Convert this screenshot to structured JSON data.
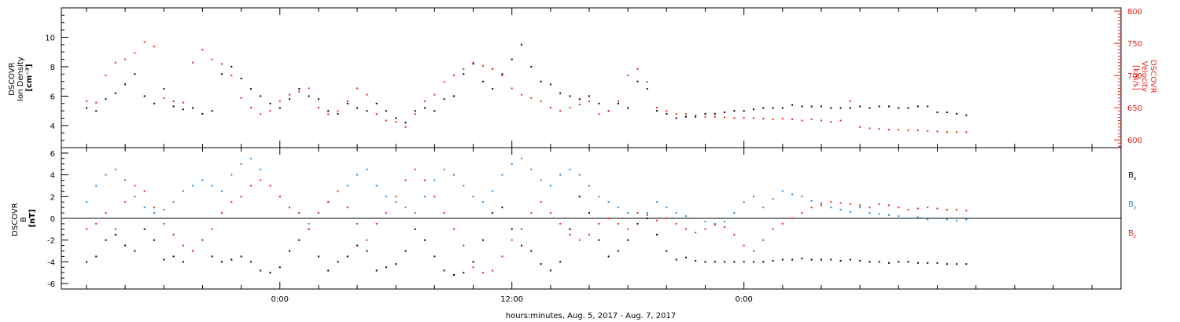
{
  "chart_data": [
    {
      "type": "scatter",
      "panel": "ion-density-velocity",
      "ylabel_lines": [
        "DSCOVR",
        "Ion Density",
        "[cm⁻³]"
      ],
      "ylim": [
        2.5,
        12
      ],
      "yticks": [
        4,
        6,
        8,
        10
      ],
      "right_axis": {
        "label_lines": [
          "DSCOVR",
          "Velocity",
          "[km/s]"
        ],
        "ylim": [
          588,
          805
        ],
        "ticks": [
          600,
          650,
          700,
          750,
          800
        ],
        "color": "#e8241c"
      },
      "series": [
        {
          "key": "density",
          "axis": "left",
          "color": "#000000",
          "x": [
            -10.0,
            -9.5,
            -9.0,
            -8.5,
            -8.0,
            -7.5,
            -7.0,
            -6.5,
            -6.0,
            -5.5,
            -5.0,
            -4.5,
            -4.0,
            -3.5,
            -3.0,
            -2.5,
            -2.0,
            -1.5,
            -1.0,
            -0.5,
            0.0,
            0.5,
            1.0,
            1.5,
            2.0,
            2.5,
            3.0,
            3.5,
            4.0,
            4.5,
            5.0,
            5.5,
            6.0,
            6.5,
            7.0,
            7.5,
            8.0,
            8.5,
            9.0,
            9.5,
            10.0,
            10.5,
            11.0,
            11.5,
            12.0,
            12.5,
            13.0,
            13.5,
            14.0,
            14.5,
            15.0,
            15.5,
            16.0,
            16.5,
            17.0,
            17.5,
            18.0,
            18.5,
            19.0,
            19.5,
            20.0,
            20.5,
            21.0,
            21.5,
            22.0,
            22.5,
            23.0,
            23.5,
            24.0,
            24.5,
            25.0,
            25.5,
            26.0,
            26.5,
            27.0,
            27.5,
            28.0,
            28.5,
            29.0,
            29.5,
            30.0,
            30.5,
            31.0,
            31.5,
            32.0,
            32.5,
            33.0,
            33.5,
            34.0,
            34.5,
            35.0,
            35.5
          ],
          "y": [
            5.2,
            5.0,
            5.8,
            6.2,
            6.8,
            7.5,
            6.0,
            5.5,
            6.5,
            5.3,
            5.1,
            5.2,
            4.8,
            5.0,
            7.5,
            8.0,
            7.2,
            6.5,
            6.0,
            5.5,
            5.2,
            5.8,
            6.5,
            6.0,
            5.8,
            5.0,
            4.8,
            5.5,
            5.2,
            5.0,
            5.5,
            5.0,
            4.5,
            4.2,
            5.0,
            5.2,
            5.0,
            5.8,
            6.0,
            7.5,
            8.2,
            7.0,
            6.5,
            7.5,
            8.5,
            9.5,
            8.0,
            7.0,
            6.8,
            6.2,
            6.0,
            5.8,
            6.0,
            5.5,
            5.0,
            5.5,
            5.2,
            7.0,
            6.5,
            5.0,
            4.8,
            4.5,
            4.6,
            4.6,
            4.8,
            4.8,
            4.9,
            5.0,
            5.0,
            5.1,
            5.2,
            5.2,
            5.2,
            5.4,
            5.3,
            5.3,
            5.3,
            5.2,
            5.2,
            5.2,
            5.3,
            5.2,
            5.3,
            5.3,
            5.2,
            5.2,
            5.3,
            5.3,
            4.9,
            4.9,
            4.8,
            4.7
          ]
        },
        {
          "key": "velocity",
          "axis": "right",
          "color": "#e8241c",
          "x": [
            -10.0,
            -9.5,
            -9.0,
            -8.5,
            -8.0,
            -7.5,
            -7.0,
            -6.5,
            -6.0,
            -5.5,
            -5.0,
            -4.5,
            -4.0,
            -3.5,
            -3.0,
            -2.5,
            -2.0,
            -1.5,
            -1.0,
            -0.5,
            0.0,
            0.5,
            1.0,
            1.5,
            2.0,
            2.5,
            3.0,
            3.5,
            4.0,
            4.5,
            5.0,
            5.5,
            6.0,
            6.5,
            7.0,
            7.5,
            8.0,
            8.5,
            9.0,
            9.5,
            10.0,
            10.5,
            11.0,
            11.5,
            12.0,
            12.5,
            13.0,
            13.5,
            14.0,
            14.5,
            15.0,
            15.5,
            16.0,
            16.5,
            17.0,
            17.5,
            18.0,
            18.5,
            19.0,
            19.5,
            20.0,
            20.5,
            21.0,
            21.5,
            22.0,
            22.5,
            23.0,
            23.5,
            24.0,
            24.5,
            25.0,
            25.5,
            26.0,
            26.5,
            27.0,
            27.5,
            28.0,
            28.5,
            29.0,
            29.5,
            30.0,
            30.5,
            31.0,
            31.5,
            32.0,
            32.5,
            33.0,
            33.5,
            34.0,
            34.5,
            35.0,
            35.5
          ],
          "y": [
            660,
            658,
            700,
            720,
            725,
            735,
            752,
            745,
            665,
            660,
            658,
            720,
            740,
            725,
            718,
            700,
            665,
            650,
            640,
            645,
            660,
            670,
            675,
            680,
            650,
            640,
            645,
            660,
            680,
            670,
            640,
            630,
            628,
            620,
            640,
            660,
            670,
            690,
            700,
            710,
            720,
            715,
            710,
            700,
            680,
            670,
            665,
            660,
            650,
            645,
            650,
            655,
            660,
            640,
            645,
            660,
            700,
            710,
            690,
            650,
            645,
            640,
            640,
            638,
            636,
            636,
            635,
            634,
            634,
            634,
            633,
            632,
            633,
            632,
            630,
            632,
            630,
            628,
            630,
            660,
            620,
            618,
            617,
            616,
            616,
            615,
            615,
            614,
            613,
            612,
            612,
            612
          ]
        }
      ]
    },
    {
      "type": "scatter",
      "panel": "magnetic-field",
      "ylabel_lines": [
        "DSCOVR",
        "B",
        "[nT]"
      ],
      "ylim": [
        -6.5,
        6.5
      ],
      "yticks": [
        -6,
        -4,
        -2,
        0,
        2,
        4,
        6
      ],
      "zero_line": true,
      "legend_placement": "right",
      "series": [
        {
          "key": "bx",
          "name": "B",
          "sub": "x",
          "color": "#000000",
          "x": [
            -10.0,
            -9.5,
            -9.0,
            -8.5,
            -8.0,
            -7.5,
            -7.0,
            -6.5,
            -6.0,
            -5.5,
            -5.0,
            -4.5,
            -4.0,
            -3.5,
            -3.0,
            -2.5,
            -2.0,
            -1.5,
            -1.0,
            -0.5,
            0.0,
            0.5,
            1.0,
            1.5,
            2.0,
            2.5,
            3.0,
            3.5,
            4.0,
            4.5,
            5.0,
            5.5,
            6.0,
            6.5,
            7.0,
            7.5,
            8.0,
            8.5,
            9.0,
            9.5,
            10.0,
            10.5,
            11.0,
            11.5,
            12.0,
            12.5,
            13.0,
            13.5,
            14.0,
            14.5,
            15.0,
            15.5,
            16.0,
            16.5,
            17.0,
            17.5,
            18.0,
            18.5,
            19.0,
            19.5,
            20.0,
            20.5,
            21.0,
            21.5,
            22.0,
            22.5,
            23.0,
            23.5,
            24.0,
            24.5,
            25.0,
            25.5,
            26.0,
            26.5,
            27.0,
            27.5,
            28.0,
            28.5,
            29.0,
            29.5,
            30.0,
            30.5,
            31.0,
            31.5,
            32.0,
            32.5,
            33.0,
            33.5,
            34.0,
            34.5,
            35.0,
            35.5
          ],
          "y": [
            -4.0,
            -3.5,
            -2.0,
            -1.5,
            -2.5,
            -3.0,
            -1.0,
            -2.0,
            -3.8,
            -3.5,
            -4.0,
            -3.0,
            -2.0,
            -3.5,
            -4.0,
            -3.8,
            -3.5,
            -4.0,
            -4.8,
            -5.0,
            -4.5,
            -3.0,
            -2.0,
            -1.0,
            -3.5,
            -4.8,
            -4.0,
            -3.5,
            -2.5,
            -3.0,
            -4.8,
            -4.5,
            -4.2,
            -3.0,
            -1.0,
            -2.0,
            -3.5,
            -4.8,
            -5.2,
            -5.0,
            -4.0,
            -2.0,
            0.5,
            1.0,
            -1.0,
            -2.5,
            -3.0,
            -4.2,
            -4.8,
            -4.0,
            -1.0,
            2.0,
            0.5,
            -2.0,
            -3.5,
            -3.0,
            -2.0,
            -0.5,
            0.0,
            -1.5,
            -3.0,
            -3.8,
            -3.6,
            -3.9,
            -4.0,
            -4.0,
            -4.0,
            -4.0,
            -4.0,
            -4.0,
            -4.0,
            -3.9,
            -3.8,
            -3.8,
            -3.7,
            -3.8,
            -3.8,
            -3.8,
            -3.9,
            -3.8,
            -3.9,
            -4.0,
            -4.0,
            -4.1,
            -4.0,
            -4.0,
            -4.1,
            -4.1,
            -4.1,
            -4.2,
            -4.2,
            -4.2
          ]
        },
        {
          "key": "by",
          "name": "B",
          "sub": "y",
          "color": "#1e88d8",
          "x": [
            -10.0,
            -9.5,
            -9.0,
            -8.5,
            -8.0,
            -7.5,
            -7.0,
            -6.5,
            -6.0,
            -5.5,
            -5.0,
            -4.5,
            -4.0,
            -3.5,
            -3.0,
            -2.5,
            -2.0,
            -1.5,
            -1.0,
            -0.5,
            0.0,
            0.5,
            1.0,
            1.5,
            2.0,
            2.5,
            3.0,
            3.5,
            4.0,
            4.5,
            5.0,
            5.5,
            6.0,
            6.5,
            7.0,
            7.5,
            8.0,
            8.5,
            9.0,
            9.5,
            10.0,
            10.5,
            11.0,
            11.5,
            12.0,
            12.5,
            13.0,
            13.5,
            14.0,
            14.5,
            15.0,
            15.5,
            16.0,
            16.5,
            17.0,
            17.5,
            18.0,
            18.5,
            19.0,
            19.5,
            20.0,
            20.5,
            21.0,
            21.5,
            22.0,
            22.5,
            23.0,
            23.5,
            24.0,
            24.5,
            25.0,
            25.5,
            26.0,
            26.5,
            27.0,
            27.5,
            28.0,
            28.5,
            29.0,
            29.5,
            30.0,
            30.5,
            31.0,
            31.5,
            32.0,
            32.5,
            33.0,
            33.5,
            34.0,
            34.5,
            35.0,
            35.5
          ],
          "y": [
            1.5,
            3.0,
            4.0,
            4.5,
            3.5,
            2.0,
            1.0,
            0.5,
            0.8,
            1.5,
            2.5,
            3.0,
            3.5,
            3.0,
            2.5,
            4.0,
            5.0,
            5.5,
            4.5,
            3.0,
            2.0,
            1.0,
            0.5,
            -0.5,
            0.5,
            1.5,
            2.5,
            3.0,
            4.0,
            4.5,
            3.0,
            2.0,
            1.5,
            1.0,
            0.5,
            2.0,
            3.5,
            4.5,
            4.0,
            3.0,
            2.0,
            1.5,
            2.5,
            4.0,
            5.0,
            5.5,
            4.5,
            3.5,
            3.0,
            4.0,
            4.5,
            4.0,
            3.0,
            2.0,
            1.5,
            1.0,
            0.5,
            0.0,
            0.5,
            1.5,
            1.0,
            0.5,
            0.2,
            0.0,
            -0.3,
            -0.5,
            -0.3,
            0.5,
            1.5,
            2.0,
            1.0,
            1.8,
            2.5,
            2.2,
            2.0,
            1.6,
            1.4,
            1.0,
            0.8,
            0.6,
            1.0,
            0.5,
            0.4,
            0.3,
            0.2,
            0.0,
            0.1,
            -0.1,
            0.0,
            -0.1,
            -0.2,
            -0.1
          ]
        },
        {
          "key": "bz",
          "name": "B",
          "sub": "z",
          "color": "#e8241c",
          "x": [
            -10.0,
            -9.5,
            -9.0,
            -8.5,
            -8.0,
            -7.5,
            -7.0,
            -6.5,
            -6.0,
            -5.5,
            -5.0,
            -4.5,
            -4.0,
            -3.5,
            -3.0,
            -2.5,
            -2.0,
            -1.5,
            -1.0,
            -0.5,
            0.0,
            0.5,
            1.0,
            1.5,
            2.0,
            2.5,
            3.0,
            3.5,
            4.0,
            4.5,
            5.0,
            5.5,
            6.0,
            6.5,
            7.0,
            7.5,
            8.0,
            8.5,
            9.0,
            9.5,
            10.0,
            10.5,
            11.0,
            11.5,
            12.0,
            12.5,
            13.0,
            13.5,
            14.0,
            14.5,
            15.0,
            15.5,
            16.0,
            16.5,
            17.0,
            17.5,
            18.0,
            18.5,
            19.0,
            19.5,
            20.0,
            20.5,
            21.0,
            21.5,
            22.0,
            22.5,
            23.0,
            23.5,
            24.0,
            24.5,
            25.0,
            25.5,
            26.0,
            26.5,
            27.0,
            27.5,
            28.0,
            28.5,
            29.0,
            29.5,
            30.0,
            30.5,
            31.0,
            31.5,
            32.0,
            32.5,
            33.0,
            33.5,
            34.0,
            34.5,
            35.0,
            35.5
          ],
          "y": [
            -1.0,
            -0.5,
            0.5,
            -1.0,
            1.5,
            3.0,
            2.5,
            1.0,
            -0.5,
            -1.5,
            -2.5,
            -3.0,
            -2.0,
            -1.0,
            0.5,
            1.5,
            2.0,
            3.0,
            3.5,
            3.0,
            2.0,
            1.0,
            0.5,
            -1.0,
            0.5,
            1.5,
            2.5,
            1.0,
            -0.5,
            -2.0,
            -0.5,
            0.5,
            2.0,
            3.5,
            4.5,
            3.5,
            2.0,
            0.5,
            -1.0,
            -2.5,
            -4.5,
            -5.0,
            -4.8,
            -3.5,
            -2.0,
            -1.0,
            0.5,
            1.5,
            0.5,
            -0.5,
            -1.5,
            -2.0,
            -1.5,
            -0.5,
            0.0,
            -0.5,
            -1.0,
            0.5,
            0.3,
            -0.2,
            0.0,
            -0.5,
            -1.0,
            -1.3,
            -1.0,
            -0.6,
            -0.8,
            -1.5,
            -2.5,
            -3.0,
            -2.0,
            -1.0,
            -0.5,
            0.0,
            0.5,
            1.0,
            1.2,
            1.5,
            1.4,
            1.3,
            1.2,
            1.0,
            1.3,
            1.2,
            1.0,
            0.8,
            0.9,
            1.0,
            0.9,
            0.8,
            0.8,
            0.7
          ]
        }
      ]
    }
  ],
  "time_axis": {
    "xlim": [
      -11.3,
      43.5
    ],
    "tick_labels": [
      {
        "hour": 0,
        "label": "0:00"
      },
      {
        "hour": 12,
        "label": "12:00"
      },
      {
        "hour": 24,
        "label": "0:00"
      }
    ],
    "minor_tick_step_hours": 2,
    "xlabel": "hours:minutes, Aug.  5, 2017 - Aug.  7, 2017"
  }
}
